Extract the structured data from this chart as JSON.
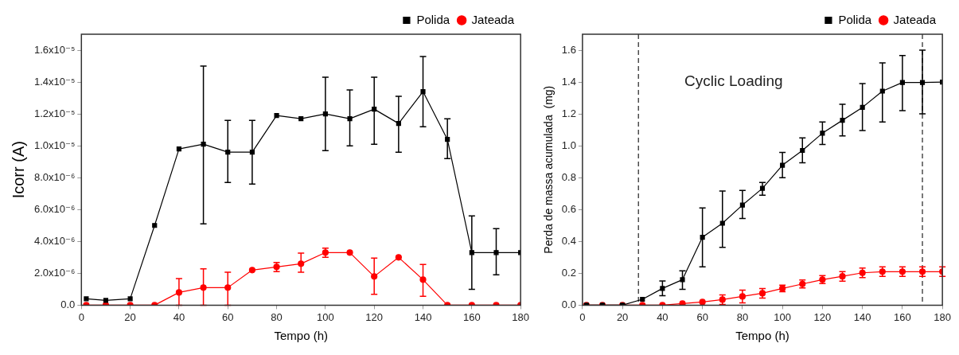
{
  "chart_data": [
    {
      "type": "line",
      "xlabel": "Tempo (h)",
      "ylabel": "Icorr (A)",
      "xlim": [
        0,
        180
      ],
      "xticks": [
        0,
        20,
        40,
        60,
        80,
        100,
        120,
        140,
        160,
        180
      ],
      "ylim": [
        0,
        1.7e-05
      ],
      "yticks": [
        {
          "value": 0,
          "label": "0.0"
        },
        {
          "value": 2e-06,
          "label": "2.0x10⁻⁶"
        },
        {
          "value": 4e-06,
          "label": "4.0x10⁻⁶"
        },
        {
          "value": 6e-06,
          "label": "6.0x10⁻⁶"
        },
        {
          "value": 8e-06,
          "label": "8.0x10⁻⁶"
        },
        {
          "value": 1e-05,
          "label": "1.0x10⁻⁵"
        },
        {
          "value": 1.2e-05,
          "label": "1.2x10⁻⁵"
        },
        {
          "value": 1.4e-05,
          "label": "1.4x10⁻⁵"
        },
        {
          "value": 1.6e-05,
          "label": "1.6x10⁻⁵"
        }
      ],
      "grid": false,
      "legend": "top right",
      "series": [
        {
          "name": "Polida",
          "color": "#000000",
          "marker": "square",
          "x": [
            2,
            10,
            20,
            30,
            40,
            50,
            60,
            70,
            80,
            90,
            100,
            110,
            120,
            130,
            140,
            150,
            160,
            170,
            180
          ],
          "values": [
            4e-07,
            3e-07,
            4e-07,
            5e-06,
            9.8e-06,
            1.01e-05,
            9.6e-06,
            9.6e-06,
            1.19e-05,
            1.17e-05,
            1.2e-05,
            1.17e-05,
            1.23e-05,
            1.14e-05,
            1.34e-05,
            1.04e-05,
            3.3e-06,
            3.3e-06,
            3.3e-06
          ],
          "errors": [
            null,
            null,
            null,
            null,
            null,
            [
              5.1e-06,
              1.5e-05
            ],
            [
              7.7e-06,
              1.16e-05
            ],
            [
              7.6e-06,
              1.16e-05
            ],
            null,
            null,
            [
              9.7e-06,
              1.43e-05
            ],
            [
              1e-05,
              1.35e-05
            ],
            [
              1.01e-05,
              1.43e-05
            ],
            [
              9.6e-06,
              1.31e-05
            ],
            [
              1.12e-05,
              1.56e-05
            ],
            [
              9.2e-06,
              1.17e-05
            ],
            [
              1e-06,
              5.6e-06
            ],
            [
              1.9e-06,
              4.8e-06
            ],
            null
          ]
        },
        {
          "name": "Jateada",
          "color": "#ff0000",
          "marker": "circle",
          "x": [
            2,
            10,
            20,
            30,
            40,
            50,
            60,
            70,
            80,
            90,
            100,
            110,
            120,
            130,
            140,
            150,
            160,
            170,
            180
          ],
          "values": [
            0,
            0,
            0,
            0,
            8e-07,
            1.1e-06,
            1.1e-06,
            2.2e-06,
            2.4e-06,
            2.6e-06,
            3.3e-06,
            3.3e-06,
            1.8e-06,
            3e-06,
            1.6e-06,
            0,
            0,
            0,
            0
          ],
          "errors": [
            null,
            null,
            null,
            null,
            [
              0,
              1.67e-06
            ],
            [
              0,
              2.28e-06
            ],
            [
              0,
              2.07e-06
            ],
            null,
            [
              2.1e-06,
              2.68e-06
            ],
            [
              2.07e-06,
              3.26e-06
            ],
            [
              3e-06,
              3.58e-06
            ],
            null,
            [
              6.8e-07,
              2.95e-06
            ],
            null,
            [
              5.6e-07,
              2.55e-06
            ],
            null,
            null,
            null,
            null
          ]
        }
      ]
    },
    {
      "type": "line",
      "xlabel": "Tempo (h)",
      "ylabel": "Perda de massa acumulada  (mg)",
      "xlim": [
        0,
        180
      ],
      "xticks": [
        0,
        20,
        40,
        60,
        80,
        100,
        120,
        140,
        160,
        180
      ],
      "ylim": [
        0,
        1.7
      ],
      "yticks": [
        {
          "value": 0,
          "label": "0.0"
        },
        {
          "value": 0.2,
          "label": "0.2"
        },
        {
          "value": 0.4,
          "label": "0.4"
        },
        {
          "value": 0.6,
          "label": "0.6"
        },
        {
          "value": 0.8,
          "label": "0.8"
        },
        {
          "value": 1,
          "label": "1.0"
        },
        {
          "value": 1.2,
          "label": "1.2"
        },
        {
          "value": 1.4,
          "label": "1.4"
        },
        {
          "value": 1.6,
          "label": "1.6"
        }
      ],
      "grid": false,
      "legend": "top right",
      "annotations": [
        "Cyclic Loading"
      ],
      "ref_lines": [
        {
          "axis": "x",
          "value": 28,
          "color": "#333333",
          "line_style": "dashed"
        },
        {
          "axis": "x",
          "value": 170,
          "color": "#333333",
          "line_style": "dashed"
        }
      ],
      "series": [
        {
          "name": "Polida",
          "color": "#000000",
          "marker": "square",
          "x": [
            2,
            10,
            20,
            30,
            40,
            50,
            60,
            70,
            80,
            90,
            100,
            110,
            120,
            130,
            140,
            150,
            160,
            170,
            180
          ],
          "values": [
            0,
            0,
            0,
            0.037,
            0.105,
            0.16,
            0.426,
            0.514,
            0.628,
            0.733,
            0.878,
            0.971,
            1.079,
            1.16,
            1.241,
            1.343,
            1.397,
            1.397,
            1.4
          ],
          "errors": [
            null,
            null,
            null,
            null,
            [
              0.059,
              0.152
            ],
            [
              0.1,
              0.215
            ],
            [
              0.24,
              0.61
            ],
            [
              0.363,
              0.716
            ],
            [
              0.544,
              0.72
            ],
            [
              0.69,
              0.77
            ],
            [
              0.8,
              0.958
            ],
            [
              0.894,
              1.05
            ],
            [
              1.008,
              1.15
            ],
            [
              1.062,
              1.26
            ],
            [
              1.096,
              1.39
            ],
            [
              1.15,
              1.52
            ],
            [
              1.22,
              1.566
            ],
            [
              1.2,
              1.6
            ],
            null
          ]
        },
        {
          "name": "Jateada",
          "color": "#ff0000",
          "marker": "circle",
          "x": [
            2,
            10,
            20,
            30,
            40,
            50,
            60,
            70,
            80,
            90,
            100,
            110,
            120,
            130,
            140,
            150,
            160,
            170,
            180
          ],
          "values": [
            0,
            0,
            0,
            0,
            0,
            0.01,
            0.02,
            0.035,
            0.055,
            0.075,
            0.105,
            0.133,
            0.16,
            0.181,
            0.203,
            0.21,
            0.21,
            0.21,
            0.21
          ],
          "errors": [
            null,
            null,
            null,
            null,
            null,
            null,
            null,
            0.03,
            0.04,
            0.03,
            0.02,
            0.025,
            0.025,
            0.03,
            0.03,
            0.03,
            0.03,
            0.03,
            0.03
          ]
        }
      ]
    }
  ]
}
